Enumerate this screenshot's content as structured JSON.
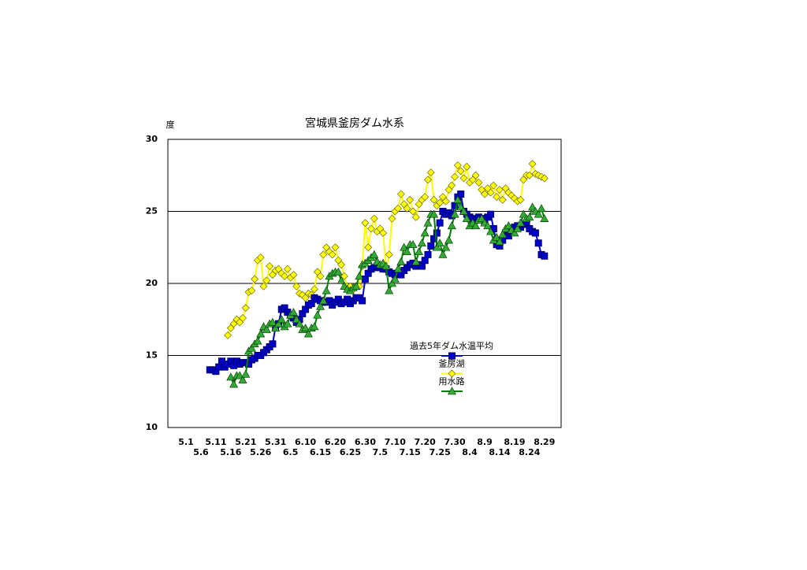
{
  "chart_data": {
    "type": "line",
    "title": "宮城県釜房ダム水系",
    "y_label": "度",
    "categories": [
      "5.1",
      null,
      null,
      null,
      null,
      "5.6",
      null,
      null,
      null,
      null,
      "5.11",
      null,
      null,
      null,
      null,
      "5.16",
      null,
      null,
      null,
      null,
      "5.21",
      null,
      null,
      null,
      null,
      "5.26",
      null,
      null,
      null,
      null,
      "5.31",
      null,
      null,
      null,
      null,
      "6.5",
      null,
      null,
      null,
      null,
      "6.10",
      null,
      null,
      null,
      null,
      "6.15",
      null,
      null,
      null,
      null,
      "6.20",
      null,
      null,
      null,
      null,
      "6.25",
      null,
      null,
      null,
      null,
      "6.30",
      null,
      null,
      null,
      null,
      "7.5",
      null,
      null,
      null,
      null,
      "7.10",
      null,
      null,
      null,
      null,
      "7.15",
      null,
      null,
      null,
      null,
      "7.20",
      null,
      null,
      null,
      null,
      "7.25",
      null,
      null,
      null,
      null,
      "7.30",
      null,
      null,
      null,
      null,
      "8.4",
      null,
      null,
      null,
      null,
      "8.9",
      null,
      null,
      null,
      null,
      "8.14",
      null,
      null,
      null,
      null,
      "8.19",
      null,
      null,
      null,
      null,
      "8.24",
      null,
      null,
      null,
      null,
      "8.29"
    ],
    "ylim": [
      10,
      30
    ],
    "yticks": [
      10,
      15,
      20,
      25,
      30
    ],
    "grid": true,
    "series": [
      {
        "name": "釜房湖",
        "color": "#ffff00",
        "marker": "diamond",
        "values": [
          null,
          null,
          null,
          null,
          null,
          null,
          null,
          null,
          null,
          null,
          null,
          null,
          null,
          null,
          16.4,
          16.9,
          17.2,
          17.5,
          17.3,
          17.6,
          18.3,
          19.4,
          19.5,
          20.3,
          21.6,
          21.8,
          19.8,
          20.2,
          21.2,
          20.6,
          20.9,
          21.0,
          20.7,
          20.5,
          21.0,
          20.4,
          20.6,
          19.8,
          19.3,
          19.2,
          19.0,
          19.3,
          19.2,
          19.6,
          20.8,
          20.5,
          22.0,
          22.5,
          22.2,
          22.0,
          22.5,
          21.6,
          21.3,
          20.5,
          19.8,
          19.8,
          19.6,
          19.8,
          19.8,
          21.2,
          24.2,
          22.5,
          23.8,
          24.5,
          23.6,
          23.8,
          23.5,
          21.0,
          22.0,
          24.5,
          25.0,
          25.2,
          26.2,
          25.5,
          25.2,
          25.8,
          25.0,
          24.6,
          25.5,
          25.8,
          26.0,
          27.2,
          27.7,
          25.8,
          25.4,
          25.6,
          26.0,
          25.7,
          26.5,
          26.8,
          27.4,
          28.2,
          27.8,
          27.3,
          28.1,
          27.0,
          27.2,
          27.5,
          27.0,
          26.5,
          26.2,
          26.6,
          26.3,
          26.8,
          26.0,
          26.5,
          25.8,
          26.6,
          26.3,
          26.1,
          25.9,
          25.7,
          25.8,
          27.2,
          27.5,
          27.5,
          28.3,
          27.6,
          27.5,
          27.4,
          27.3
        ]
      },
      {
        "name": "過去5年ダム水温平均",
        "color": "#0000cc",
        "marker": "square",
        "values": [
          null,
          null,
          null,
          null,
          null,
          null,
          null,
          null,
          14.0,
          14.0,
          13.9,
          14.2,
          14.6,
          14.2,
          14.4,
          14.6,
          14.3,
          14.6,
          14.4,
          14.5,
          14.5,
          14.4,
          14.7,
          14.8,
          15.0,
          15.0,
          15.2,
          15.4,
          15.6,
          15.8,
          17.0,
          17.2,
          18.2,
          18.3,
          18.0,
          17.8,
          17.6,
          17.3,
          17.5,
          17.9,
          18.2,
          18.5,
          18.6,
          19.0,
          18.9,
          18.8,
          18.7,
          18.7,
          18.8,
          18.5,
          18.7,
          18.9,
          18.6,
          18.7,
          18.9,
          18.6,
          18.8,
          19.0,
          19.0,
          18.8,
          20.3,
          20.7,
          21.0,
          21.1,
          21.2,
          21.1,
          21.0,
          21.0,
          20.8,
          20.7,
          20.6,
          20.7,
          20.6,
          20.9,
          21.1,
          21.3,
          21.4,
          21.2,
          21.3,
          21.2,
          21.6,
          22.0,
          22.6,
          23.1,
          23.5,
          24.2,
          25.0,
          24.8,
          24.9,
          24.7,
          25.4,
          26.0,
          26.2,
          25.0,
          24.8,
          24.6,
          24.5,
          24.4,
          24.6,
          24.5,
          24.3,
          24.6,
          24.8,
          23.8,
          22.7,
          22.6,
          23.0,
          23.5,
          23.3,
          23.7,
          23.9,
          24.0,
          23.9,
          24.1,
          24.2,
          23.8,
          23.6,
          23.5,
          22.8,
          22.0,
          21.9
        ]
      },
      {
        "name": "用水路",
        "color": "#008000",
        "marker": "triangle",
        "values": [
          null,
          null,
          null,
          null,
          null,
          null,
          null,
          null,
          null,
          null,
          null,
          null,
          null,
          null,
          null,
          13.5,
          13.0,
          13.6,
          13.6,
          13.3,
          13.7,
          15.3,
          15.5,
          15.8,
          16.0,
          16.5,
          17.0,
          16.8,
          17.2,
          17.3,
          16.9,
          17.2,
          17.5,
          17.0,
          17.2,
          17.8,
          18.0,
          17.5,
          17.2,
          16.8,
          16.9,
          16.5,
          16.9,
          17.0,
          17.8,
          18.4,
          18.8,
          19.5,
          20.5,
          20.7,
          20.8,
          20.8,
          20.2,
          19.8,
          19.6,
          19.5,
          19.7,
          19.8,
          20.5,
          21.3,
          21.4,
          21.6,
          21.8,
          22.0,
          21.5,
          21.3,
          21.4,
          21.2,
          19.5,
          20.0,
          20.3,
          21.0,
          21.5,
          22.5,
          22.2,
          22.7,
          22.7,
          21.5,
          22.2,
          22.8,
          23.5,
          24.2,
          24.8,
          24.8,
          22.5,
          22.8,
          22.0,
          22.5,
          23.0,
          24.0,
          24.8,
          25.8,
          25.3,
          25.0,
          24.5,
          24.0,
          24.2,
          24.0,
          24.4,
          24.5,
          24.2,
          24.0,
          23.6,
          23.0,
          23.2,
          22.9,
          23.4,
          23.8,
          24.0,
          23.7,
          23.5,
          23.8,
          24.2,
          24.8,
          24.5,
          24.6,
          25.3,
          25.0,
          24.8,
          25.2,
          24.5
        ]
      }
    ]
  }
}
